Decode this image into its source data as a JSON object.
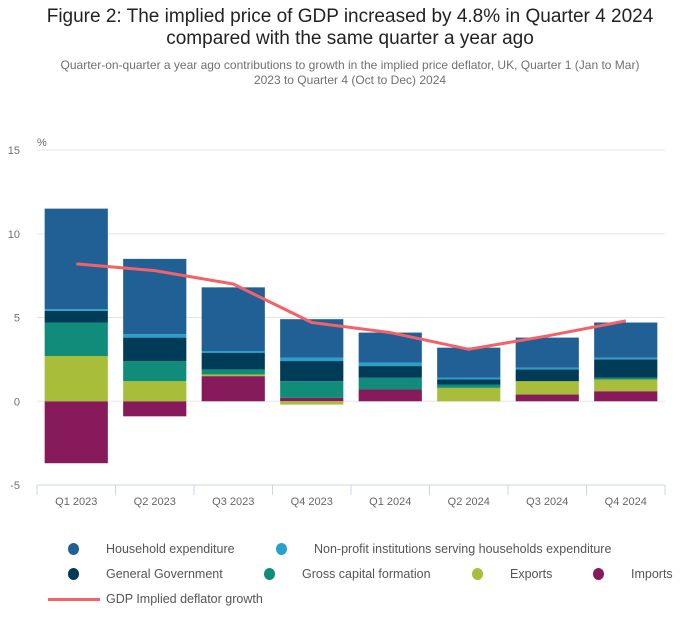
{
  "chart_data": {
    "type": "bar",
    "stacked": true,
    "title": "Figure 2: The implied price of GDP increased by 4.8% in Quarter 4 2024 compared with the same quarter a year ago",
    "title_lines": [
      "Figure 2: The implied price of GDP increased by 4.8% in Quarter 4 2024",
      "compared with the same quarter a year ago"
    ],
    "subtitle": "Quarter-on-quarter a year ago contributions to growth in the implied price deflator, UK, Quarter 1 (Jan to Mar) 2023 to Quarter 4 (Oct to Dec) 2024",
    "subtitle_lines": [
      "Quarter-on-quarter a year ago contributions to growth in the implied price deflator, UK, Quarter 1 (Jan to Mar)",
      "2023 to Quarter 4 (Oct to Dec) 2024"
    ],
    "xlabel": "",
    "ylabel": "%",
    "ylim": [
      -5,
      15
    ],
    "yticks": [
      -5,
      0,
      5,
      10,
      15
    ],
    "grid": true,
    "legend_position": "bottom",
    "categories": [
      "Q1 2023",
      "Q2 2023",
      "Q3 2023",
      "Q4 2023",
      "Q1 2024",
      "Q2 2024",
      "Q3 2024",
      "Q4 2024"
    ],
    "series": [
      {
        "name": "Imports",
        "color": "#871a5b",
        "values": [
          -3.7,
          -0.9,
          1.5,
          0.2,
          0.7,
          0.0,
          0.4,
          0.6
        ]
      },
      {
        "name": "Exports",
        "color": "#a8bd3a",
        "values": [
          2.7,
          1.2,
          0.1,
          -0.2,
          0.0,
          0.8,
          0.8,
          0.7
        ]
      },
      {
        "name": "Gross capital formation",
        "color": "#118c7b",
        "values": [
          2.0,
          1.2,
          0.3,
          1.0,
          0.7,
          0.2,
          0.0,
          0.1
        ]
      },
      {
        "name": "General Government",
        "color": "#003c57",
        "values": [
          0.7,
          1.4,
          1.0,
          1.2,
          0.7,
          0.3,
          0.7,
          1.1
        ]
      },
      {
        "name": "Non-profit institutions serving households expenditure",
        "color": "#27a0cc",
        "values": [
          0.1,
          0.2,
          0.1,
          0.2,
          0.2,
          0.1,
          0.1,
          0.1
        ]
      },
      {
        "name": "Household expenditure",
        "color": "#206095",
        "values": [
          6.0,
          4.5,
          3.8,
          2.3,
          1.8,
          1.8,
          1.8,
          2.1
        ]
      }
    ],
    "line_series": {
      "name": "GDP Implied deflator growth",
      "color": "#f66068",
      "values": [
        8.2,
        7.8,
        7.0,
        4.7,
        4.1,
        3.1,
        3.9,
        4.8
      ]
    }
  },
  "legend": {
    "row1": [
      {
        "name": "Household expenditure",
        "color": "#206095"
      },
      {
        "name": "Non-profit institutions serving households expenditure",
        "color": "#27a0cc"
      }
    ],
    "row2": [
      {
        "name": "General Government",
        "color": "#003c57"
      },
      {
        "name": "Gross capital formation",
        "color": "#118c7b"
      },
      {
        "name": "Exports",
        "color": "#a8bd3a"
      },
      {
        "name": "Imports",
        "color": "#871a5b"
      }
    ],
    "row3": [
      {
        "name": "GDP Implied deflator growth",
        "color": "#f66068"
      }
    ]
  }
}
